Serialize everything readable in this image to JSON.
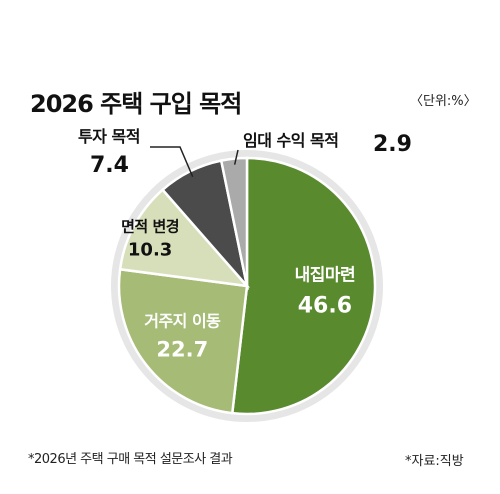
{
  "title": "2026 주택 구입 목적",
  "unit": "〈단위:%〉",
  "footnote": "*2026년 주택 구매 목적 설문조사 결과",
  "source": "*자료:직방",
  "chart_data": {
    "type": "pie",
    "title": "2026 주택 구입 목적",
    "unit": "%",
    "categories": [
      "내집마련",
      "거주지 이동",
      "면적 변경",
      "투자 목적",
      "임대 수익 목적"
    ],
    "values": [
      46.6,
      22.7,
      10.3,
      7.4,
      2.9
    ],
    "labels": [
      "46.6",
      "22.7",
      "10.3",
      "7.4",
      "2.9"
    ],
    "colors": [
      "#5a8a2e",
      "#a5bb76",
      "#d7dfba",
      "#4b4b4b",
      "#aaaaaa"
    ],
    "start_angle_deg": 0,
    "direction": "clockwise",
    "legend": "none"
  }
}
